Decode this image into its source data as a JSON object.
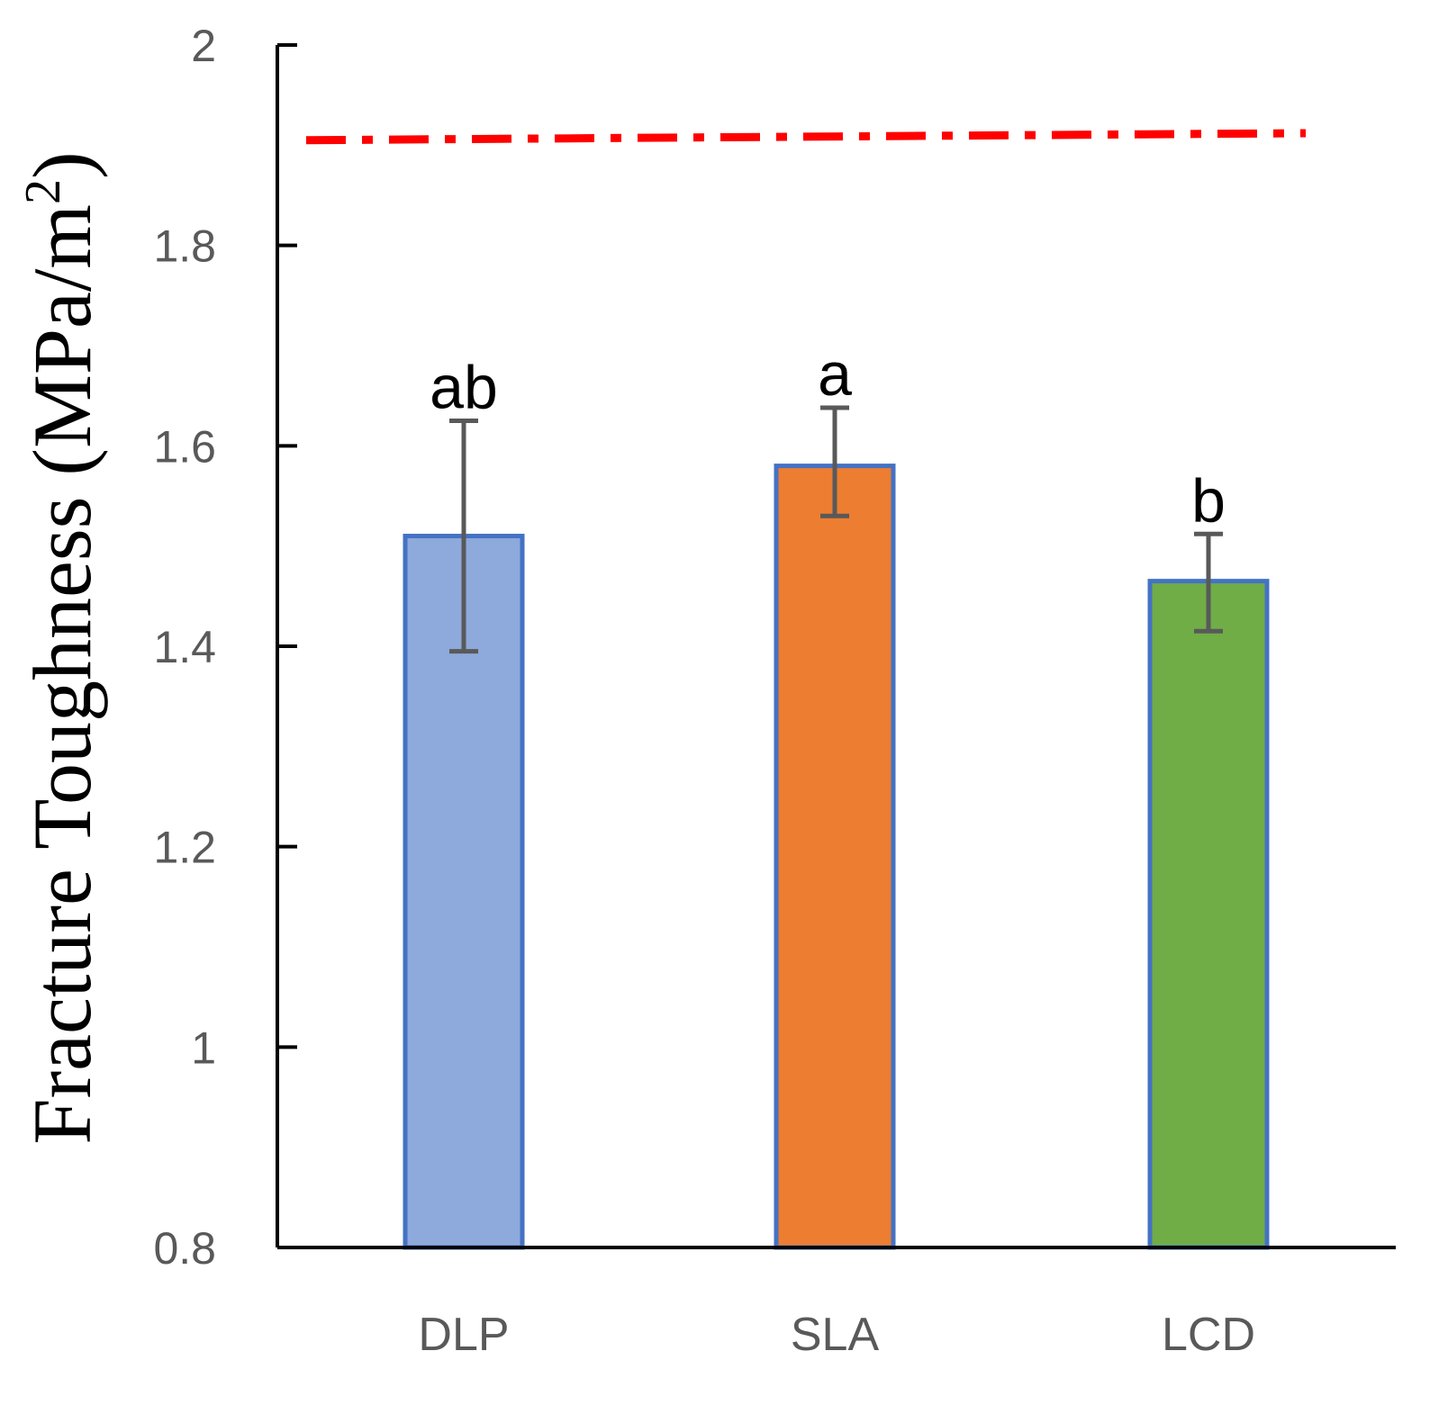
{
  "chart_data": {
    "type": "bar",
    "title": "",
    "xlabel": "",
    "ylabel": "Fracture Toughness (MPa/m",
    "ylabel_superscript": "2",
    "ylabel_close": ")",
    "ylim": [
      0.8,
      2.0
    ],
    "yticks": [
      0.8,
      1.0,
      1.2,
      1.4,
      1.6,
      1.8,
      2.0
    ],
    "ytick_labels": [
      "0.8",
      "1",
      "1.2",
      "1.4",
      "1.6",
      "1.8",
      "2"
    ],
    "categories": [
      "DLP",
      "SLA",
      "LCD"
    ],
    "values": [
      1.51,
      1.58,
      1.465
    ],
    "error_low": [
      1.395,
      1.53,
      1.415
    ],
    "error_high": [
      1.625,
      1.638,
      1.512
    ],
    "significance": [
      "ab",
      "a",
      "b"
    ],
    "bar_colors": [
      "#8EA9DB",
      "#ED7D31",
      "#70AD47"
    ],
    "bar_edge_color": "#4472C4",
    "error_color": "#595959",
    "reference_line": {
      "y_start": 1.905,
      "y_end": 1.912,
      "style": "dash-dot",
      "color": "#FF0000"
    },
    "grid": false,
    "legend": "none"
  }
}
